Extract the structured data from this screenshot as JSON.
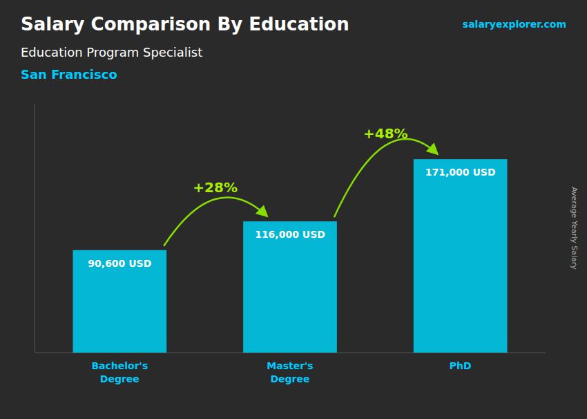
{
  "chart_data": {
    "type": "bar",
    "title": "Salary Comparison By Education",
    "subtitle": [
      "Education Program Specialist",
      "San Francisco"
    ],
    "source": "salaryexplorer.com",
    "y_label": "Average Yearly Salary",
    "categories": [
      "Bachelor's\nDegree",
      "Master's\nDegree",
      "PhD"
    ],
    "values": [
      90600,
      116000,
      171000
    ],
    "value_labels": [
      "90,600 USD",
      "116,000 USD",
      "171,000 USD"
    ],
    "data_labels": true,
    "annotations": [
      "+28%",
      "+48%"
    ],
    "color": "#00c8e8",
    "ylim": [
      0,
      220000
    ],
    "tick_labels": "x",
    "grid": false
  }
}
